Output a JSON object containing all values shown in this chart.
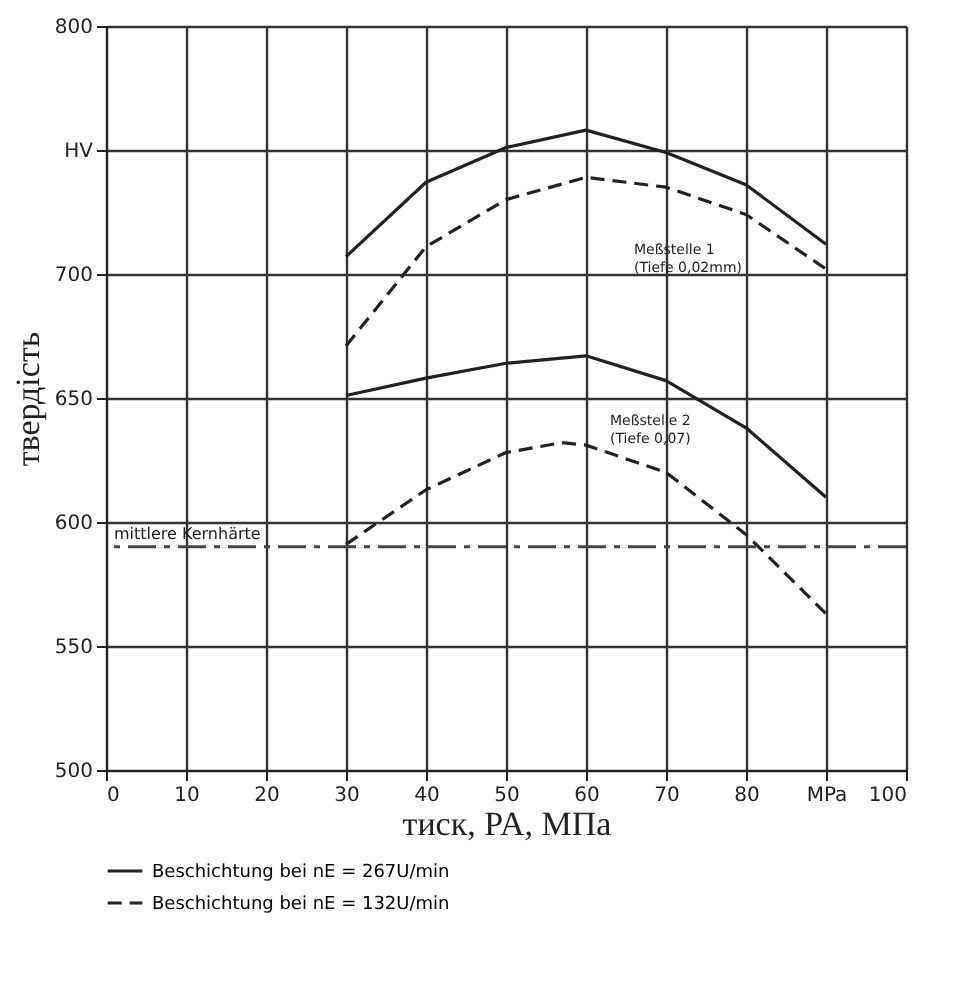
{
  "chart_data": {
    "type": "line",
    "xlabel": "тиск, PA, МПа",
    "ylabel": "твердість",
    "xlim": [
      0,
      100
    ],
    "xticks": [
      0,
      10,
      20,
      30,
      40,
      50,
      60,
      70,
      80,
      {
        "value": 90,
        "label": "MPa"
      },
      100
    ],
    "ylim": [
      500,
      800
    ],
    "yticks": [
      500,
      550,
      600,
      650,
      700,
      {
        "value": 750,
        "label": "HV"
      },
      800
    ],
    "grid": true,
    "legend": "bottom left",
    "marker": "none",
    "series": [
      {
        "name": "Beschichtung bei nE = 267U/min",
        "color": "#222222",
        "line_style": "solid",
        "x": [
          30,
          40,
          50,
          60,
          70,
          80,
          90
        ],
        "values": [
          707,
          737,
          751,
          758,
          749,
          736,
          712
        ]
      },
      {
        "name": "Beschichtung bei nE = 132U/min",
        "color": "#222222",
        "line_style": "dashed",
        "x": [
          30,
          40,
          50,
          60,
          70,
          80,
          90
        ],
        "values": [
          671,
          711,
          730,
          739,
          735,
          724,
          702
        ]
      },
      {
        "color": "#222222",
        "line_style": "solid",
        "x": [
          30,
          40,
          50,
          60,
          70,
          80,
          90
        ],
        "values": [
          651,
          658,
          664,
          667,
          657,
          638,
          610
        ]
      },
      {
        "color": "#222222",
        "line_style": "dashed",
        "x": [
          30,
          40,
          50,
          57,
          60,
          70,
          80,
          90
        ],
        "values": [
          591,
          613,
          628,
          632,
          631,
          620,
          595,
          563
        ]
      }
    ],
    "ref_lines": [
      {
        "axis": "y",
        "value": 590,
        "label": "mittlere Kernhärte",
        "color": "#444444",
        "line_style": "dashed"
      }
    ],
    "annotations": [
      "Meßstelle 1\n(Tiefe 0,02mm)",
      "Meßstelle 2\n(Tiefe 0,07)"
    ]
  }
}
